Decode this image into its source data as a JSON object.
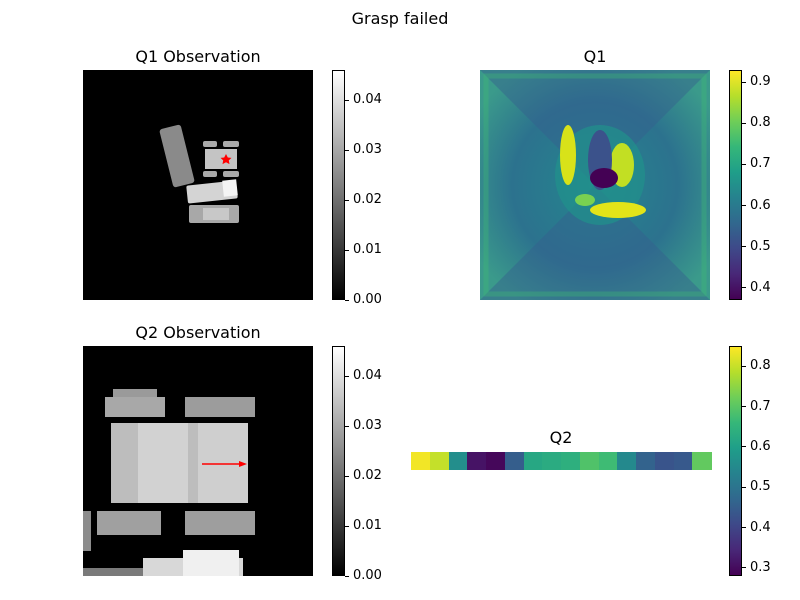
{
  "suptitle": "Grasp failed",
  "chart_data": [
    {
      "type": "heatmap",
      "title": "Q1 Observation",
      "content": "grayscale depth image",
      "colormap": "gray",
      "colorbar": {
        "range": [
          0,
          0.046
        ],
        "ticks": [
          "0.00",
          "0.01",
          "0.02",
          "0.03",
          "0.04"
        ]
      },
      "marker": {
        "shape": "star",
        "color": "#ff0000"
      }
    },
    {
      "type": "heatmap",
      "title": "Q1",
      "content": "Q-value map",
      "colormap": "viridis",
      "colorbar": {
        "range": [
          0.37,
          0.93
        ],
        "ticks": [
          "0.4",
          "0.5",
          "0.6",
          "0.7",
          "0.8",
          "0.9"
        ]
      }
    },
    {
      "type": "heatmap",
      "title": "Q2 Observation",
      "content": "zoomed grayscale depth crop",
      "colormap": "gray",
      "colorbar": {
        "range": [
          0,
          0.046
        ],
        "ticks": [
          "0.00",
          "0.01",
          "0.02",
          "0.03",
          "0.04"
        ]
      },
      "arrow": {
        "direction": "right",
        "color": "#ff0000"
      }
    },
    {
      "type": "heatmap",
      "title": "Q2",
      "colormap": "viridis",
      "values": [
        0.84,
        0.8,
        0.56,
        0.31,
        0.29,
        0.45,
        0.62,
        0.63,
        0.64,
        0.69,
        0.67,
        0.55,
        0.46,
        0.43,
        0.44,
        0.71
      ],
      "colorbar": {
        "range": [
          0.28,
          0.85
        ],
        "ticks": [
          "0.3",
          "0.4",
          "0.5",
          "0.6",
          "0.7",
          "0.8"
        ]
      }
    }
  ],
  "colors": {
    "viridis": [
      "#440154",
      "#482878",
      "#3e4989",
      "#31688e",
      "#26828e",
      "#1f9e89",
      "#35b779",
      "#6ece58",
      "#b5de2b",
      "#fde725"
    ],
    "marker": "#ff0000"
  }
}
